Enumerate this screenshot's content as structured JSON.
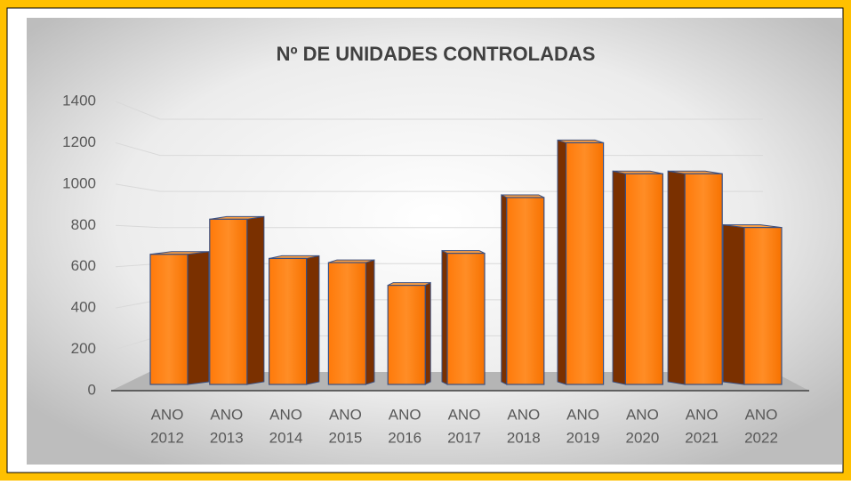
{
  "chart_data": {
    "type": "bar3d",
    "title": "Nº DE UNIDADES CONTROLADAS",
    "categories": [
      [
        "ANO",
        "2012"
      ],
      [
        "ANO",
        "2013"
      ],
      [
        "ANO",
        "2014"
      ],
      [
        "ANO",
        "2015"
      ],
      [
        "ANO",
        "2016"
      ],
      [
        "ANO",
        "2017"
      ],
      [
        "ANO",
        "2018"
      ],
      [
        "ANO",
        "2019"
      ],
      [
        "ANO",
        "2020"
      ],
      [
        "ANO",
        "2021"
      ],
      [
        "ANO",
        "2022"
      ]
    ],
    "values": [
      660,
      830,
      640,
      620,
      510,
      665,
      935,
      1200,
      1050,
      1050,
      790
    ],
    "color": "#ff7f0e",
    "ylim": [
      0,
      1400
    ],
    "yticks": [
      0,
      200,
      400,
      600,
      800,
      1000,
      1200,
      1400
    ],
    "grid": true
  }
}
